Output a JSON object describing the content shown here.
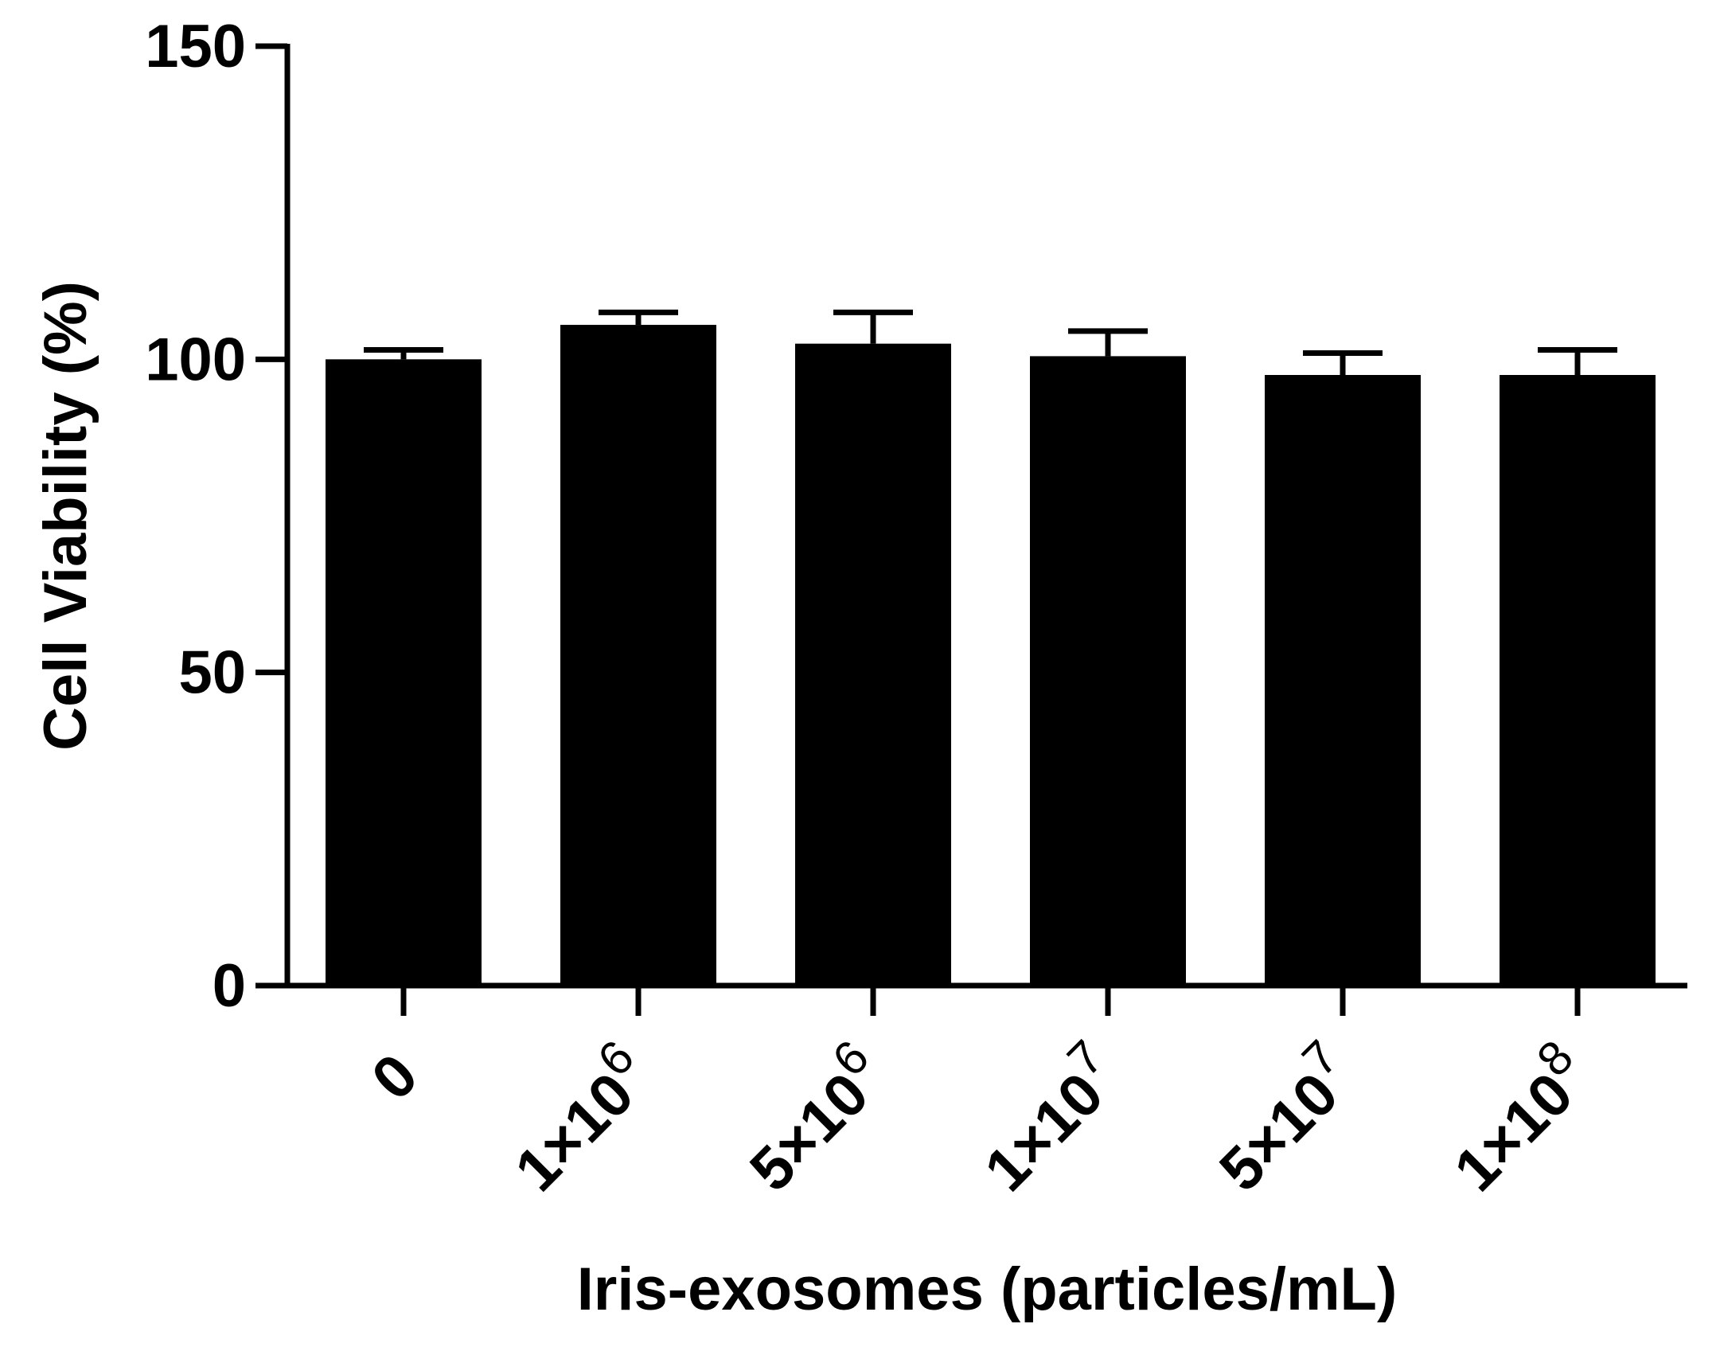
{
  "chart_data": {
    "type": "bar",
    "title": "",
    "xlabel": "Iris-exosomes (particles/mL)",
    "ylabel": "Cell Viability (%)",
    "ylim": [
      0,
      150
    ],
    "yticks": [
      0,
      50,
      100,
      150
    ],
    "categories": [
      {
        "base": "0",
        "exp": ""
      },
      {
        "base": "1×10",
        "exp": "6"
      },
      {
        "base": "5×10",
        "exp": "6"
      },
      {
        "base": "1×10",
        "exp": "7"
      },
      {
        "base": "5×10",
        "exp": "7"
      },
      {
        "base": "1×10",
        "exp": "8"
      }
    ],
    "values": [
      100,
      105.5,
      102.5,
      100.5,
      97.5,
      97.5
    ],
    "error": [
      1.5,
      2,
      5,
      4,
      3.5,
      4
    ],
    "colors": {
      "bar": "#000000",
      "axis": "#000000"
    },
    "grid": false,
    "legend": "none"
  }
}
